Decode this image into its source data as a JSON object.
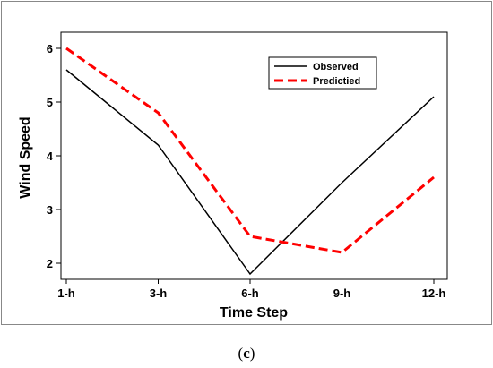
{
  "panel_label": {
    "open": "(",
    "letter": "c",
    "close": ")"
  },
  "chart_data": {
    "type": "line",
    "categories": [
      "1-h",
      "3-h",
      "6-h",
      "9-h",
      "12-h"
    ],
    "xlabel": "Time Step",
    "ylabel": "Wind Speed",
    "yticks": [
      2,
      3,
      4,
      5,
      6
    ],
    "ylim": [
      1.7,
      6.3
    ],
    "grid": false,
    "legend_position": "top-right",
    "series": [
      {
        "name": "Observed",
        "values": [
          5.6,
          4.2,
          1.8,
          3.5,
          5.1
        ],
        "color": "#000000",
        "style": "solid"
      },
      {
        "name": "Predictied",
        "values": [
          6.0,
          4.8,
          2.5,
          2.2,
          3.6
        ],
        "color": "#ff0000",
        "style": "dashed"
      }
    ]
  }
}
